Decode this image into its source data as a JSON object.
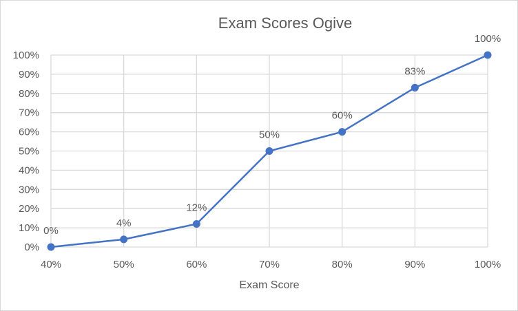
{
  "chart_data": {
    "type": "line",
    "title": "Exam Scores Ogive",
    "xlabel": "Exam Score",
    "ylabel": "",
    "categories": [
      "40%",
      "50%",
      "60%",
      "70%",
      "80%",
      "90%",
      "100%"
    ],
    "values": [
      0,
      4,
      12,
      50,
      60,
      83,
      100
    ],
    "data_labels": [
      "0%",
      "4%",
      "12%",
      "50%",
      "60%",
      "83%",
      "100%"
    ],
    "y_ticks": [
      "0%",
      "10%",
      "20%",
      "30%",
      "40%",
      "50%",
      "60%",
      "70%",
      "80%",
      "90%",
      "100%"
    ],
    "ylim": [
      0,
      100
    ],
    "grid": true,
    "markers": true,
    "legend": "none",
    "colors": {
      "series": "#4472c4",
      "grid": "#d9d9d9",
      "text": "#595959"
    }
  }
}
